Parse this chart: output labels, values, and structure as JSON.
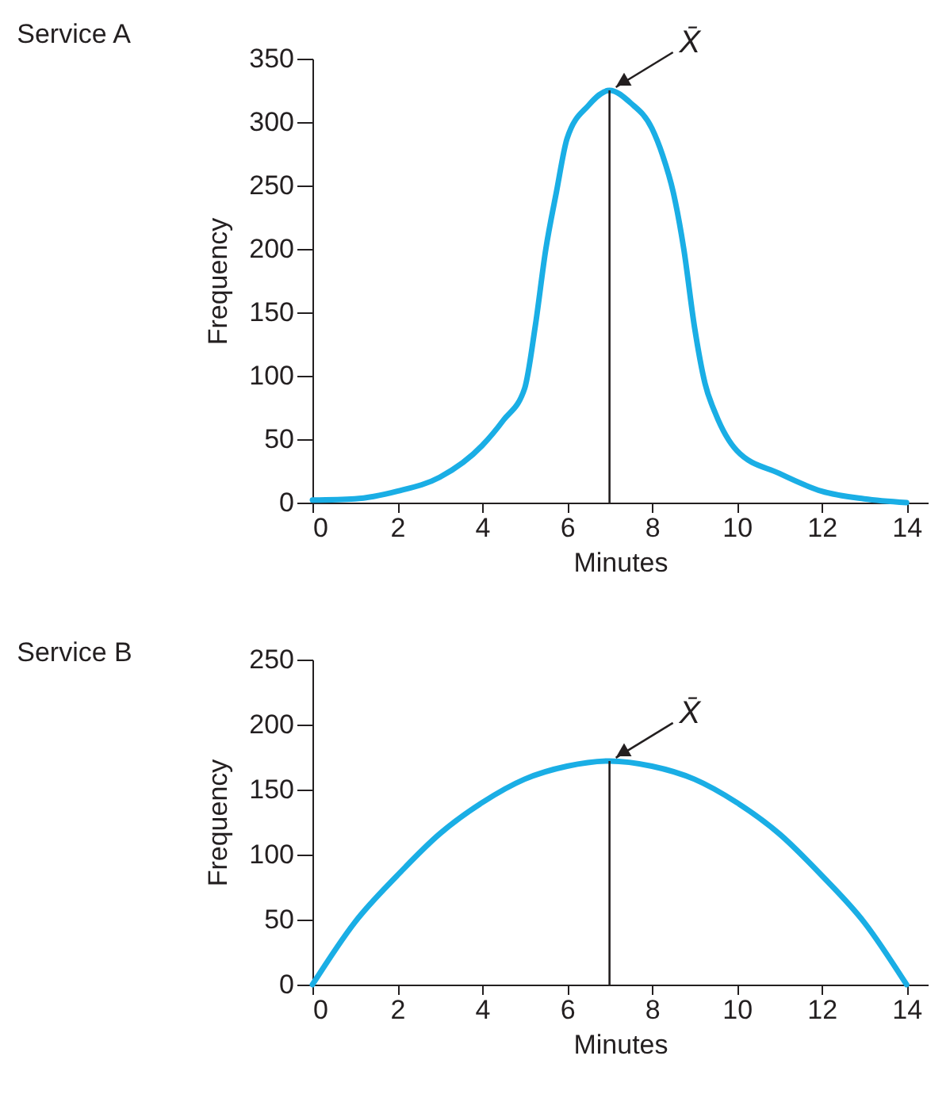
{
  "chart_data": [
    {
      "type": "line",
      "title": "Service A",
      "xlabel": "Minutes",
      "ylabel": "Frequency",
      "x": [
        0,
        1,
        2,
        3,
        4,
        4.5,
        5,
        5.25,
        5.5,
        5.75,
        6,
        6.5,
        7,
        7.5,
        8,
        8.25,
        8.5,
        8.75,
        9,
        9.25,
        9.5,
        10,
        11,
        12,
        13,
        14
      ],
      "series": [
        {
          "color": "#1aaee5",
          "values": [
            2,
            3,
            9,
            20,
            45,
            65,
            90,
            139,
            200,
            245,
            287,
            313,
            325,
            315,
            295,
            274,
            245,
            200,
            139,
            94,
            70,
            41,
            23,
            9,
            3,
            0
          ]
        }
      ],
      "xlim": [
        0,
        14.5
      ],
      "xticks": [
        0,
        2,
        4,
        6,
        8,
        10,
        12,
        14
      ],
      "ylim": [
        0,
        350
      ],
      "yticks": [
        0,
        50,
        100,
        150,
        200,
        250,
        300,
        350
      ],
      "ref_lines": [
        {
          "axis": "x",
          "value": 7,
          "color": "#231f20"
        }
      ],
      "annotations": [
        {
          "text": "X̄",
          "x": 7,
          "y": 325
        }
      ],
      "grid": false,
      "marker": "none",
      "line_style": "solid"
    },
    {
      "type": "line",
      "title": "Service B",
      "xlabel": "Minutes",
      "ylabel": "Frequency",
      "x": [
        0,
        1,
        2,
        3,
        4,
        5,
        6,
        7,
        8,
        9,
        10,
        11,
        12,
        13,
        14
      ],
      "series": [
        {
          "color": "#1aaee5",
          "values": [
            0,
            48,
            84,
            116,
            140,
            158,
            168,
            172,
            168,
            158,
            140,
            116,
            84,
            48,
            0
          ]
        }
      ],
      "xlim": [
        0,
        14.5
      ],
      "xticks": [
        0,
        2,
        4,
        6,
        8,
        10,
        12,
        14
      ],
      "ylim": [
        0,
        250
      ],
      "yticks": [
        0,
        50,
        100,
        150,
        200,
        250
      ],
      "ref_lines": [
        {
          "axis": "x",
          "value": 7,
          "color": "#231f20"
        }
      ],
      "annotations": [
        {
          "text": "X̄",
          "x": 7,
          "y": 172
        }
      ],
      "grid": false,
      "marker": "none",
      "line_style": "solid"
    }
  ]
}
